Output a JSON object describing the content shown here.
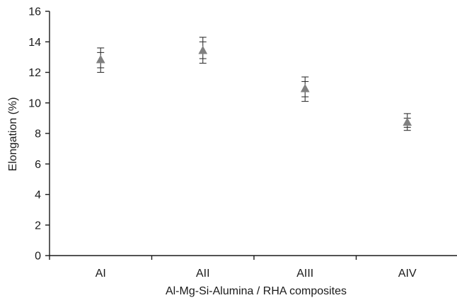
{
  "chart_data": {
    "type": "scatter",
    "title": "",
    "xlabel": "Al-Mg-Si-Alumina / RHA composites",
    "ylabel": "Elongation (%)",
    "categories": [
      "AI",
      "AII",
      "AIII",
      "AIV"
    ],
    "ylim": [
      0,
      16
    ],
    "yticks": [
      0,
      2,
      4,
      6,
      8,
      10,
      12,
      14,
      16
    ],
    "grid": false,
    "legend": "none",
    "series": [
      {
        "values": [
          12.8,
          13.4,
          10.9,
          8.7
        ],
        "error_bars": [
          [
            12.0,
            12.3,
            13.3,
            13.6
          ],
          [
            12.6,
            12.9,
            14.0,
            14.3
          ],
          [
            10.1,
            10.4,
            11.4,
            11.7
          ],
          [
            8.2,
            8.4,
            9.0,
            9.3
          ]
        ],
        "marker": "triangle",
        "color": "#808080"
      }
    ],
    "colors": {
      "axis": "#1a1a1a",
      "error_bar": "#333333"
    }
  }
}
